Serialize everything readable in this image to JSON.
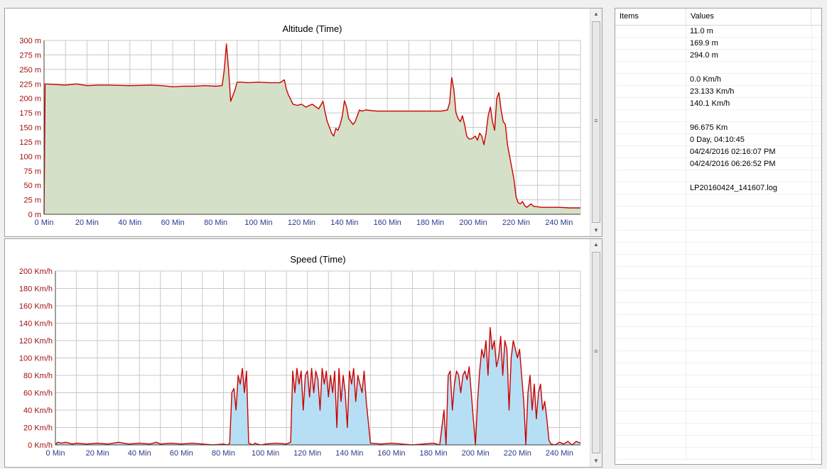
{
  "chart_data": [
    {
      "type": "area",
      "title": "Altitude (Time)",
      "ylim": [
        0,
        300
      ],
      "yticks": [
        0,
        25,
        50,
        75,
        100,
        125,
        150,
        175,
        200,
        225,
        250,
        275,
        300
      ],
      "yunit": "m",
      "xlim": [
        0,
        250
      ],
      "xticks": [
        0,
        20,
        40,
        60,
        80,
        100,
        120,
        140,
        160,
        180,
        200,
        220,
        240
      ],
      "xunit": "Min",
      "grid": true,
      "line_color": "#cc0000",
      "fill_color": "#d5e0c8",
      "x": [
        0,
        0.5,
        5,
        10,
        15,
        20,
        25,
        30,
        40,
        50,
        55,
        60,
        65,
        70,
        75,
        80,
        83,
        84,
        85,
        86,
        87,
        88,
        89,
        90,
        92,
        95,
        100,
        105,
        110,
        112,
        113,
        114,
        115,
        116,
        118,
        120,
        122,
        125,
        128,
        130,
        131,
        132,
        133,
        134,
        135,
        136,
        137,
        138,
        139,
        140,
        141,
        142,
        143,
        144,
        145,
        146,
        147,
        148,
        150,
        155,
        160,
        165,
        170,
        175,
        180,
        185,
        188,
        189,
        190,
        191,
        192,
        193,
        194,
        195,
        196,
        197,
        198,
        199,
        200,
        201,
        202,
        203,
        204,
        205,
        206,
        207,
        208,
        209,
        210,
        211,
        212,
        213,
        214,
        215,
        216,
        217,
        218,
        219,
        220,
        221,
        222,
        223,
        224,
        225,
        226,
        227,
        228,
        230,
        232,
        235,
        240,
        245,
        250
      ],
      "y": [
        0,
        225,
        224,
        223,
        225,
        222,
        223,
        223,
        222,
        223,
        222,
        220,
        221,
        221,
        222,
        221,
        222,
        250,
        294,
        250,
        195,
        205,
        215,
        228,
        228,
        227,
        228,
        227,
        227,
        232,
        215,
        205,
        198,
        190,
        188,
        190,
        185,
        190,
        182,
        195,
        176,
        160,
        150,
        140,
        135,
        148,
        145,
        155,
        170,
        196,
        185,
        165,
        160,
        155,
        160,
        170,
        180,
        178,
        180,
        178,
        178,
        178,
        178,
        178,
        178,
        178,
        180,
        192,
        236,
        215,
        175,
        165,
        160,
        170,
        155,
        135,
        130,
        130,
        132,
        135,
        128,
        140,
        135,
        120,
        140,
        170,
        185,
        160,
        145,
        200,
        210,
        180,
        160,
        155,
        120,
        100,
        80,
        60,
        30,
        20,
        18,
        22,
        15,
        12,
        15,
        18,
        14,
        13,
        12,
        12,
        12,
        11,
        11
      ]
    },
    {
      "type": "area",
      "title": "Speed (Time)",
      "ylim": [
        0,
        200
      ],
      "yticks": [
        0,
        20,
        40,
        60,
        80,
        100,
        120,
        140,
        160,
        180,
        200
      ],
      "yunit": "Km/h",
      "xlim": [
        0,
        250
      ],
      "xticks": [
        0,
        20,
        40,
        60,
        80,
        100,
        120,
        140,
        160,
        180,
        200,
        220,
        240
      ],
      "xunit": "Min",
      "grid": true,
      "line_color": "#cc0000",
      "fill_color": "#b6dff5",
      "x": [
        0,
        1,
        3,
        5,
        8,
        10,
        15,
        20,
        25,
        30,
        35,
        40,
        45,
        48,
        50,
        55,
        60,
        65,
        70,
        75,
        80,
        82,
        83,
        84,
        85,
        86,
        87,
        88,
        89,
        90,
        91,
        92,
        93,
        94,
        95,
        96,
        98,
        100,
        105,
        110,
        112,
        113,
        114,
        115,
        116,
        117,
        118,
        119,
        120,
        121,
        122,
        123,
        124,
        125,
        126,
        127,
        128,
        129,
        130,
        131,
        132,
        133,
        134,
        135,
        136,
        137,
        138,
        139,
        140,
        141,
        142,
        143,
        144,
        145,
        146,
        147,
        148,
        150,
        155,
        160,
        165,
        170,
        175,
        180,
        183,
        185,
        186,
        187,
        188,
        189,
        190,
        191,
        192,
        193,
        194,
        195,
        196,
        197,
        198,
        199,
        200,
        201,
        202,
        203,
        204,
        205,
        206,
        207,
        208,
        209,
        210,
        211,
        212,
        213,
        214,
        215,
        216,
        217,
        218,
        219,
        220,
        221,
        222,
        223,
        224,
        225,
        226,
        227,
        228,
        229,
        230,
        231,
        232,
        233,
        234,
        235,
        236,
        238,
        240,
        242,
        244,
        246,
        248,
        250
      ],
      "y": [
        0,
        3,
        2,
        3,
        1,
        2,
        1,
        2,
        1,
        3,
        1,
        2,
        1,
        3,
        1,
        2,
        1,
        2,
        1,
        0,
        1,
        0,
        2,
        60,
        65,
        40,
        80,
        70,
        88,
        60,
        85,
        2,
        1,
        0,
        2,
        1,
        0,
        1,
        2,
        1,
        3,
        85,
        60,
        88,
        70,
        85,
        40,
        80,
        85,
        55,
        88,
        60,
        85,
        75,
        40,
        88,
        70,
        85,
        55,
        80,
        60,
        85,
        20,
        88,
        50,
        80,
        60,
        20,
        85,
        70,
        88,
        50,
        80,
        70,
        60,
        85,
        50,
        2,
        1,
        2,
        1,
        0,
        1,
        2,
        0,
        40,
        0,
        80,
        85,
        40,
        70,
        85,
        80,
        60,
        80,
        85,
        75,
        90,
        60,
        30,
        0,
        50,
        85,
        110,
        100,
        120,
        80,
        135,
        110,
        120,
        90,
        100,
        125,
        80,
        120,
        110,
        40,
        100,
        120,
        110,
        100,
        110,
        80,
        50,
        0,
        60,
        80,
        40,
        70,
        30,
        60,
        70,
        40,
        50,
        30,
        5,
        1,
        0,
        3,
        1,
        4,
        0,
        4,
        2
      ]
    }
  ],
  "table": {
    "headers": [
      "Items",
      "Values"
    ],
    "values": [
      "11.0 m",
      "169.9 m",
      "294.0 m",
      "",
      "0.0 Km/h",
      "23.133 Km/h",
      "140.1 Km/h",
      "",
      "96.675 Km",
      "0 Day, 04:10:45",
      "04/24/2016 02:16:07 PM",
      "04/24/2016 06:26:52 PM",
      "",
      "LP20160424_141607.log"
    ],
    "total_rows": 36
  }
}
